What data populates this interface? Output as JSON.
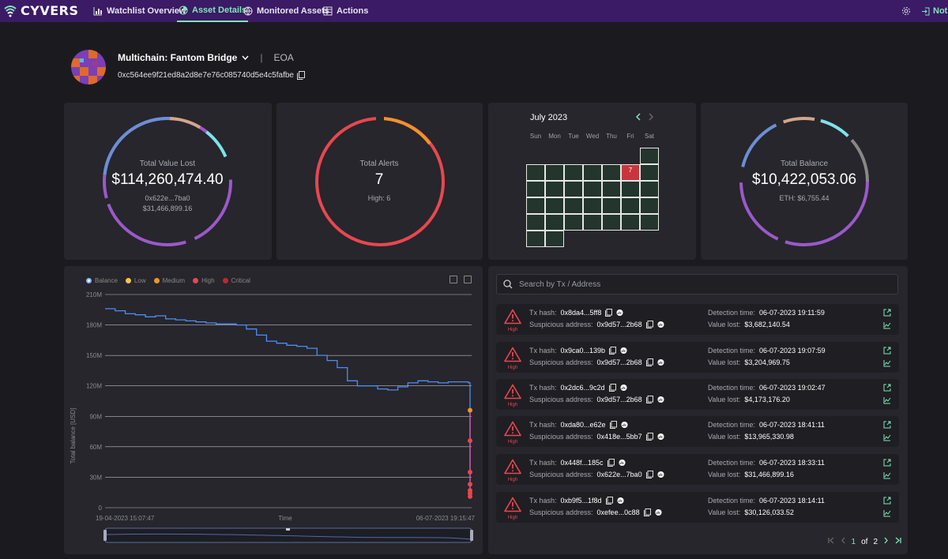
{
  "brand": {
    "name": "CYVERS"
  },
  "nav": {
    "items": [
      {
        "label": "Watchlist Overview",
        "icon": "chart-icon"
      },
      {
        "label": "Asset Details",
        "icon": "asset-icon"
      },
      {
        "label": "Monitored Assets",
        "icon": "globe-icon"
      },
      {
        "label": "Actions",
        "icon": "table-icon"
      }
    ],
    "notifications_label": "Noti"
  },
  "asset": {
    "name": "Multichain: Fantom Bridge",
    "separator": "|",
    "type": "EOA",
    "address": "0xc564ee9f21ed8a2d8e7e76c085740d5e4c5fafbe"
  },
  "cards": {
    "value_lost": {
      "label": "Total Value Lost",
      "value": "$114,260,474.40",
      "sub_addr": "0x622e...7ba0",
      "sub_value": "$31,466,899.16"
    },
    "alerts": {
      "label": "Total Alerts",
      "value": "7",
      "sub": "High: 6"
    },
    "balance": {
      "label": "Total Balance",
      "value": "$10,422,053.06",
      "sub": "ETH: $6,755.44"
    }
  },
  "calendar": {
    "month": "July 2023",
    "weekdays": [
      "Sun",
      "Mon",
      "Tue",
      "Wed",
      "Thu",
      "Fri",
      "Sat"
    ],
    "alert_day": "7",
    "colors": {
      "cell": "#23352d",
      "alert": "#c8363d"
    }
  },
  "chart": {
    "legend": [
      "Balance",
      "Low",
      "Medium",
      "High",
      "Critical"
    ],
    "legend_colors": [
      "#8ab4ff",
      "#f6c443",
      "#f0932b",
      "#e8474f",
      "#c0272d"
    ],
    "x_start": "19-04-2023 15:07:47",
    "x_end": "06-07-2023 19:15:47",
    "xlabel": "Time",
    "ylabel": "Total balance [USD]"
  },
  "chart_data": {
    "type": "line",
    "title": "",
    "xlabel": "Time",
    "ylabel": "Total balance [USD]",
    "y_ticks": [
      "0",
      "30M",
      "60M",
      "90M",
      "120M",
      "150M",
      "180M",
      "210M"
    ],
    "ylim": [
      0,
      210000000
    ],
    "series": [
      {
        "name": "Balance",
        "values": [
          196000000,
          194000000,
          191000000,
          190000000,
          188000000,
          189000000,
          186000000,
          185000000,
          184000000,
          183000000,
          182000000,
          181000000,
          181000000,
          180000000,
          176000000,
          170000000,
          164000000,
          162000000,
          160000000,
          159000000,
          157000000,
          150000000,
          145000000,
          138000000,
          125000000,
          120000000,
          120000000,
          117000000,
          116000000,
          119000000,
          123000000,
          125000000,
          124000000,
          123000000,
          124000000,
          124000000,
          123000000,
          96000000,
          66000000,
          35000000,
          23000000,
          17000000,
          12000000
        ]
      }
    ],
    "alert_points": [
      {
        "severity": "Medium",
        "value": 96000000
      },
      {
        "severity": "High",
        "value": 66000000
      },
      {
        "severity": "High",
        "value": 35000000
      },
      {
        "severity": "High",
        "value": 23000000
      },
      {
        "severity": "High",
        "value": 17000000
      },
      {
        "severity": "High",
        "value": 14000000
      },
      {
        "severity": "High",
        "value": 11000000
      }
    ]
  },
  "search": {
    "placeholder": "Search by Tx / Address"
  },
  "alerts_list": {
    "tx_label": "Tx hash:",
    "addr_label": "Suspicious address:",
    "time_label": "Detection time:",
    "value_label": "Value lost:",
    "rows": [
      {
        "severity": "High",
        "tx": "0x8da4...5ff8",
        "addr": "0x9d57...2b68",
        "time": "06-07-2023 19:11:59",
        "value": "$3,682,140.54"
      },
      {
        "severity": "High",
        "tx": "0x9ca0...139b",
        "addr": "0x9d57...2b68",
        "time": "06-07-2023 19:07:59",
        "value": "$3,204,969.75"
      },
      {
        "severity": "High",
        "tx": "0x2dc6...9c2d",
        "addr": "0x9d57...2b68",
        "time": "06-07-2023 19:02:47",
        "value": "$4,173,176.20"
      },
      {
        "severity": "High",
        "tx": "0xda80...e62e",
        "addr": "0x418e...5bb7",
        "time": "06-07-2023 18:41:11",
        "value": "$13,965,330.98"
      },
      {
        "severity": "High",
        "tx": "0x448f...185c",
        "addr": "0x622e...7ba0",
        "time": "06-07-2023 18:33:11",
        "value": "$31,466,899.16"
      },
      {
        "severity": "High",
        "tx": "0xb9f5...1f8d",
        "addr": "0xefee...0c88",
        "time": "06-07-2023 18:14:11",
        "value": "$30,126,033.52"
      }
    ]
  },
  "pagination": {
    "current": "1",
    "of": "of",
    "total": "2"
  }
}
